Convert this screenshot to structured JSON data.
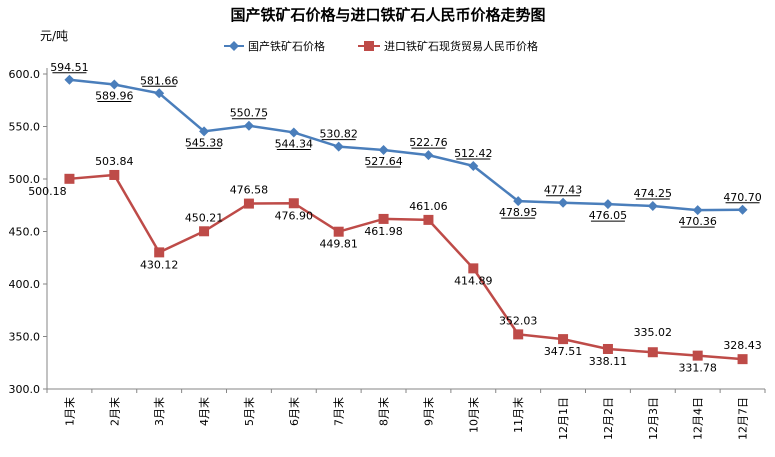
{
  "chart_data": {
    "type": "line",
    "title": "国产铁矿石价格与进口铁矿石人民币价格走势图",
    "ylabel": "元/吨",
    "ylim": [
      300,
      600
    ],
    "yticks": [
      "300.0",
      "350.0",
      "400.0",
      "450.0",
      "500.0",
      "550.0",
      "600.0"
    ],
    "grid": false,
    "legend_position": "top-right",
    "categories": [
      "1月末",
      "2月末",
      "3月末",
      "4月末",
      "5月末",
      "6月末",
      "7月末",
      "8月末",
      "9月末",
      "10月末",
      "11月末",
      "12月1日",
      "12月2日",
      "12月3日",
      "12月4日",
      "12月7日"
    ],
    "series": [
      {
        "name": "国产铁矿石价格",
        "color": "#4a7ebb",
        "marker": "diamond",
        "underline_labels": true,
        "values": [
          594.51,
          589.96,
          581.66,
          545.38,
          550.75,
          544.34,
          530.82,
          527.64,
          522.76,
          512.42,
          478.95,
          477.43,
          476.05,
          474.25,
          470.36,
          470.7
        ],
        "labels": [
          "594.51",
          "589.96",
          "581.66",
          "545.38",
          "550.75",
          "544.34",
          "530.82",
          "527.64",
          "522.76",
          "512.42",
          "478.95",
          "477.43",
          "476.05",
          "474.25",
          "470.36",
          "470.70"
        ]
      },
      {
        "name": "进口铁矿石现货贸易人民币价格",
        "color": "#be4b48",
        "marker": "square",
        "underline_labels": false,
        "values": [
          500.18,
          503.84,
          430.12,
          450.21,
          476.58,
          476.9,
          449.81,
          461.98,
          461.06,
          414.89,
          352.03,
          347.51,
          338.11,
          335.02,
          331.78,
          328.43
        ],
        "labels": [
          "500.18",
          "503.84",
          "430.12",
          "450.21",
          "476.58",
          "476.90",
          "449.81",
          "461.98",
          "461.06",
          "414.89",
          "352.03",
          "347.51",
          "338.11",
          "335.02",
          "331.78",
          "328.43"
        ]
      }
    ]
  }
}
